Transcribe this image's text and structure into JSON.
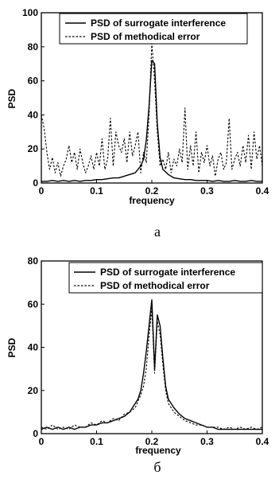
{
  "chart_data": [
    {
      "type": "line",
      "caption": "а",
      "xlabel": "frequency",
      "ylabel": "PSD",
      "xlim": [
        0,
        0.4
      ],
      "ylim": [
        0,
        100
      ],
      "xticks": [
        "0",
        "0.1",
        "0.2",
        "0.3",
        "0.4"
      ],
      "yticks": [
        "0",
        "20",
        "40",
        "60",
        "80",
        "100"
      ],
      "legend_position": "top-right",
      "series": [
        {
          "name": "PSD of surrogate interference",
          "style": "solid",
          "x": [
            0,
            0.01,
            0.02,
            0.03,
            0.04,
            0.05,
            0.06,
            0.07,
            0.08,
            0.09,
            0.1,
            0.11,
            0.12,
            0.13,
            0.14,
            0.15,
            0.16,
            0.17,
            0.18,
            0.185,
            0.19,
            0.195,
            0.2,
            0.205,
            0.21,
            0.215,
            0.22,
            0.23,
            0.24,
            0.25,
            0.26,
            0.27,
            0.28,
            0.29,
            0.3,
            0.31,
            0.32,
            0.33,
            0.34,
            0.35,
            0.36,
            0.37,
            0.38,
            0.39,
            0.4
          ],
          "y": [
            1,
            1,
            1.5,
            1,
            1.5,
            1,
            1.5,
            1,
            1.5,
            1.5,
            2,
            2,
            2.5,
            3,
            3,
            4,
            5,
            6,
            10,
            14,
            25,
            45,
            72,
            70,
            35,
            15,
            8,
            5,
            3,
            2.5,
            2,
            2,
            1.5,
            1.5,
            1.5,
            1,
            1.5,
            1,
            1,
            1.5,
            1,
            1,
            1.5,
            1,
            1
          ]
        },
        {
          "name": "PSD of methodical error",
          "style": "dashed",
          "x": [
            0,
            0.005,
            0.01,
            0.015,
            0.02,
            0.025,
            0.03,
            0.035,
            0.04,
            0.045,
            0.05,
            0.055,
            0.06,
            0.065,
            0.07,
            0.075,
            0.08,
            0.085,
            0.09,
            0.095,
            0.1,
            0.105,
            0.11,
            0.115,
            0.12,
            0.125,
            0.13,
            0.135,
            0.14,
            0.145,
            0.15,
            0.155,
            0.16,
            0.165,
            0.17,
            0.175,
            0.18,
            0.185,
            0.19,
            0.195,
            0.2,
            0.205,
            0.21,
            0.215,
            0.22,
            0.225,
            0.23,
            0.235,
            0.24,
            0.245,
            0.25,
            0.255,
            0.26,
            0.265,
            0.27,
            0.275,
            0.28,
            0.285,
            0.29,
            0.295,
            0.3,
            0.305,
            0.31,
            0.315,
            0.32,
            0.325,
            0.33,
            0.335,
            0.34,
            0.345,
            0.35,
            0.355,
            0.36,
            0.365,
            0.37,
            0.375,
            0.38,
            0.385,
            0.39,
            0.395,
            0.4
          ],
          "y": [
            40,
            32,
            18,
            8,
            15,
            6,
            12,
            4,
            10,
            14,
            22,
            12,
            18,
            8,
            20,
            12,
            6,
            10,
            16,
            8,
            18,
            10,
            26,
            8,
            14,
            38,
            10,
            30,
            22,
            18,
            26,
            12,
            30,
            16,
            22,
            30,
            6,
            18,
            12,
            40,
            82,
            60,
            30,
            10,
            14,
            8,
            18,
            6,
            14,
            10,
            20,
            12,
            44,
            8,
            22,
            10,
            30,
            6,
            18,
            12,
            22,
            10,
            16,
            4,
            14,
            18,
            8,
            12,
            38,
            8,
            14,
            18,
            10,
            22,
            12,
            28,
            8,
            30,
            14,
            22,
            10
          ]
        }
      ]
    },
    {
      "type": "line",
      "caption": "б",
      "xlabel": "frequency",
      "ylabel": "PSD",
      "xlim": [
        0,
        0.4
      ],
      "ylim": [
        0,
        80
      ],
      "xticks": [
        "0",
        "0.1",
        "0.2",
        "0.3",
        "0.4"
      ],
      "yticks": [
        "0",
        "20",
        "40",
        "60",
        "80"
      ],
      "legend_position": "top-right",
      "series": [
        {
          "name": "PSD of surrogate interference",
          "style": "solid",
          "x": [
            0,
            0.01,
            0.02,
            0.03,
            0.04,
            0.05,
            0.06,
            0.07,
            0.08,
            0.09,
            0.1,
            0.11,
            0.12,
            0.13,
            0.14,
            0.15,
            0.16,
            0.17,
            0.175,
            0.18,
            0.185,
            0.19,
            0.195,
            0.2,
            0.205,
            0.21,
            0.215,
            0.22,
            0.225,
            0.23,
            0.24,
            0.25,
            0.26,
            0.27,
            0.28,
            0.29,
            0.3,
            0.31,
            0.32,
            0.33,
            0.34,
            0.35,
            0.36,
            0.37,
            0.38,
            0.39,
            0.4
          ],
          "y": [
            2,
            3,
            2,
            3,
            2,
            3,
            2,
            3,
            3,
            4,
            4,
            5,
            5,
            6,
            7,
            8,
            10,
            14,
            16,
            20,
            28,
            38,
            50,
            62,
            30,
            55,
            50,
            35,
            22,
            16,
            12,
            9,
            7,
            6,
            5,
            4,
            3,
            3,
            2,
            2,
            2,
            2,
            2,
            2,
            2,
            2,
            2
          ]
        },
        {
          "name": "PSD of methodical error",
          "style": "dashed",
          "x": [
            0,
            0.01,
            0.02,
            0.03,
            0.04,
            0.05,
            0.06,
            0.07,
            0.08,
            0.09,
            0.1,
            0.11,
            0.12,
            0.13,
            0.14,
            0.15,
            0.16,
            0.17,
            0.175,
            0.18,
            0.185,
            0.19,
            0.195,
            0.2,
            0.205,
            0.21,
            0.215,
            0.22,
            0.225,
            0.23,
            0.24,
            0.25,
            0.26,
            0.27,
            0.28,
            0.29,
            0.3,
            0.31,
            0.32,
            0.33,
            0.34,
            0.35,
            0.36,
            0.37,
            0.38,
            0.39,
            0.4
          ],
          "y": [
            3,
            2,
            4,
            2,
            3,
            2,
            4,
            3,
            3,
            5,
            4,
            6,
            5,
            7,
            6,
            9,
            10,
            12,
            15,
            18,
            22,
            30,
            45,
            58,
            28,
            52,
            46,
            32,
            20,
            14,
            10,
            8,
            6,
            5,
            4,
            4,
            3,
            3,
            3,
            2,
            3,
            2,
            3,
            2,
            3,
            2,
            3
          ]
        }
      ]
    }
  ]
}
